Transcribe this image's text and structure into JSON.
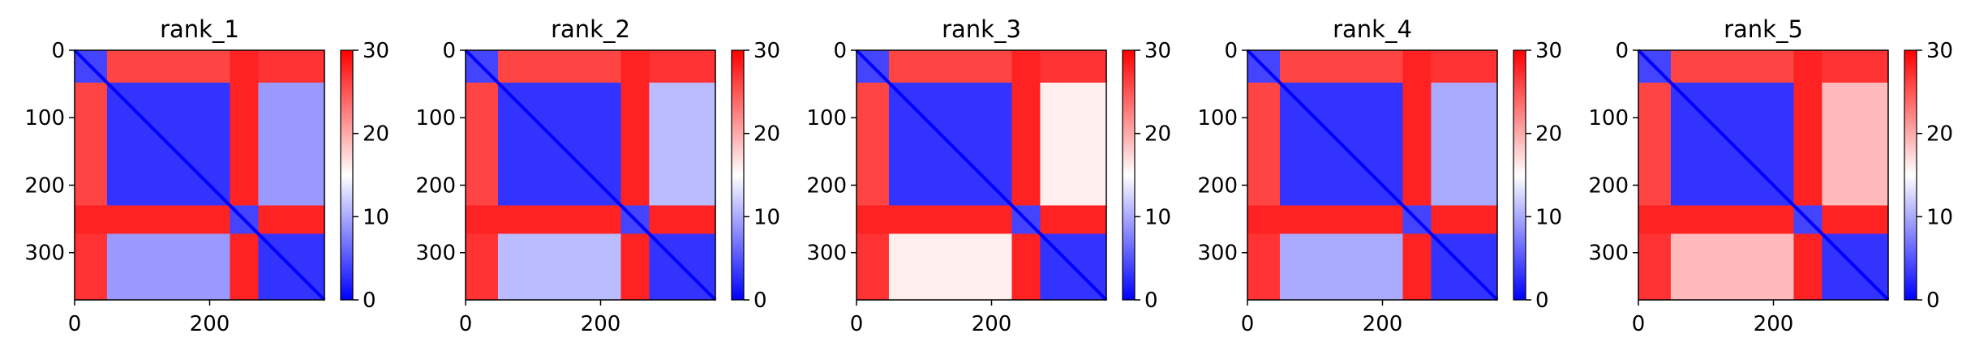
{
  "chart_data": [
    {
      "type": "heatmap",
      "title": "rank_1",
      "colormap": "bwr",
      "clim": [
        0,
        30
      ],
      "xlim": [
        0,
        370
      ],
      "ylim": [
        370,
        0
      ],
      "x_ticks": [
        0,
        200
      ],
      "y_ticks": [
        0,
        100,
        200,
        300
      ],
      "colorbar_ticks": [
        0,
        10,
        20,
        30
      ],
      "domains": [
        [
          0,
          48
        ],
        [
          48,
          230
        ],
        [
          230,
          272
        ],
        [
          272,
          370
        ]
      ],
      "block_values": [
        [
          4,
          26,
          28,
          27
        ],
        [
          26,
          3,
          28,
          9
        ],
        [
          28,
          28,
          4,
          28
        ],
        [
          27,
          9,
          28,
          3
        ]
      ],
      "diagonal_value": 0
    },
    {
      "type": "heatmap",
      "title": "rank_2",
      "colormap": "bwr",
      "clim": [
        0,
        30
      ],
      "xlim": [
        0,
        370
      ],
      "ylim": [
        370,
        0
      ],
      "x_ticks": [
        0,
        200
      ],
      "y_ticks": [
        0,
        100,
        200,
        300
      ],
      "colorbar_ticks": [
        0,
        10,
        20,
        30
      ],
      "domains": [
        [
          0,
          48
        ],
        [
          48,
          230
        ],
        [
          230,
          272
        ],
        [
          272,
          370
        ]
      ],
      "block_values": [
        [
          4,
          26,
          28,
          27
        ],
        [
          26,
          3,
          28,
          11
        ],
        [
          28,
          28,
          4,
          28
        ],
        [
          27,
          11,
          28,
          3
        ]
      ],
      "diagonal_value": 0
    },
    {
      "type": "heatmap",
      "title": "rank_3",
      "colormap": "bwr",
      "clim": [
        0,
        30
      ],
      "xlim": [
        0,
        370
      ],
      "ylim": [
        370,
        0
      ],
      "x_ticks": [
        0,
        200
      ],
      "y_ticks": [
        0,
        100,
        200,
        300
      ],
      "colorbar_ticks": [
        0,
        10,
        20,
        30
      ],
      "domains": [
        [
          0,
          48
        ],
        [
          48,
          230
        ],
        [
          230,
          272
        ],
        [
          272,
          370
        ]
      ],
      "block_values": [
        [
          4,
          26,
          28,
          27
        ],
        [
          26,
          3,
          28,
          16
        ],
        [
          28,
          28,
          4,
          28
        ],
        [
          27,
          16,
          28,
          3
        ]
      ],
      "diagonal_value": 0
    },
    {
      "type": "heatmap",
      "title": "rank_4",
      "colormap": "bwr",
      "clim": [
        0,
        30
      ],
      "xlim": [
        0,
        370
      ],
      "ylim": [
        370,
        0
      ],
      "x_ticks": [
        0,
        200
      ],
      "y_ticks": [
        0,
        100,
        200,
        300
      ],
      "colorbar_ticks": [
        0,
        10,
        20,
        30
      ],
      "domains": [
        [
          0,
          48
        ],
        [
          48,
          230
        ],
        [
          230,
          272
        ],
        [
          272,
          370
        ]
      ],
      "block_values": [
        [
          4,
          26,
          28,
          27
        ],
        [
          26,
          3,
          28,
          10
        ],
        [
          28,
          28,
          4,
          28
        ],
        [
          27,
          10,
          28,
          3
        ]
      ],
      "diagonal_value": 0
    },
    {
      "type": "heatmap",
      "title": "rank_5",
      "colormap": "bwr",
      "clim": [
        0,
        30
      ],
      "xlim": [
        0,
        370
      ],
      "ylim": [
        370,
        0
      ],
      "x_ticks": [
        0,
        200
      ],
      "y_ticks": [
        0,
        100,
        200,
        300
      ],
      "colorbar_ticks": [
        0,
        10,
        20,
        30
      ],
      "domains": [
        [
          0,
          48
        ],
        [
          48,
          230
        ],
        [
          230,
          272
        ],
        [
          272,
          370
        ]
      ],
      "block_values": [
        [
          4,
          26,
          28,
          27
        ],
        [
          26,
          3,
          28,
          19
        ],
        [
          28,
          28,
          4,
          28
        ],
        [
          27,
          19,
          28,
          3
        ]
      ],
      "diagonal_value": 0
    }
  ]
}
